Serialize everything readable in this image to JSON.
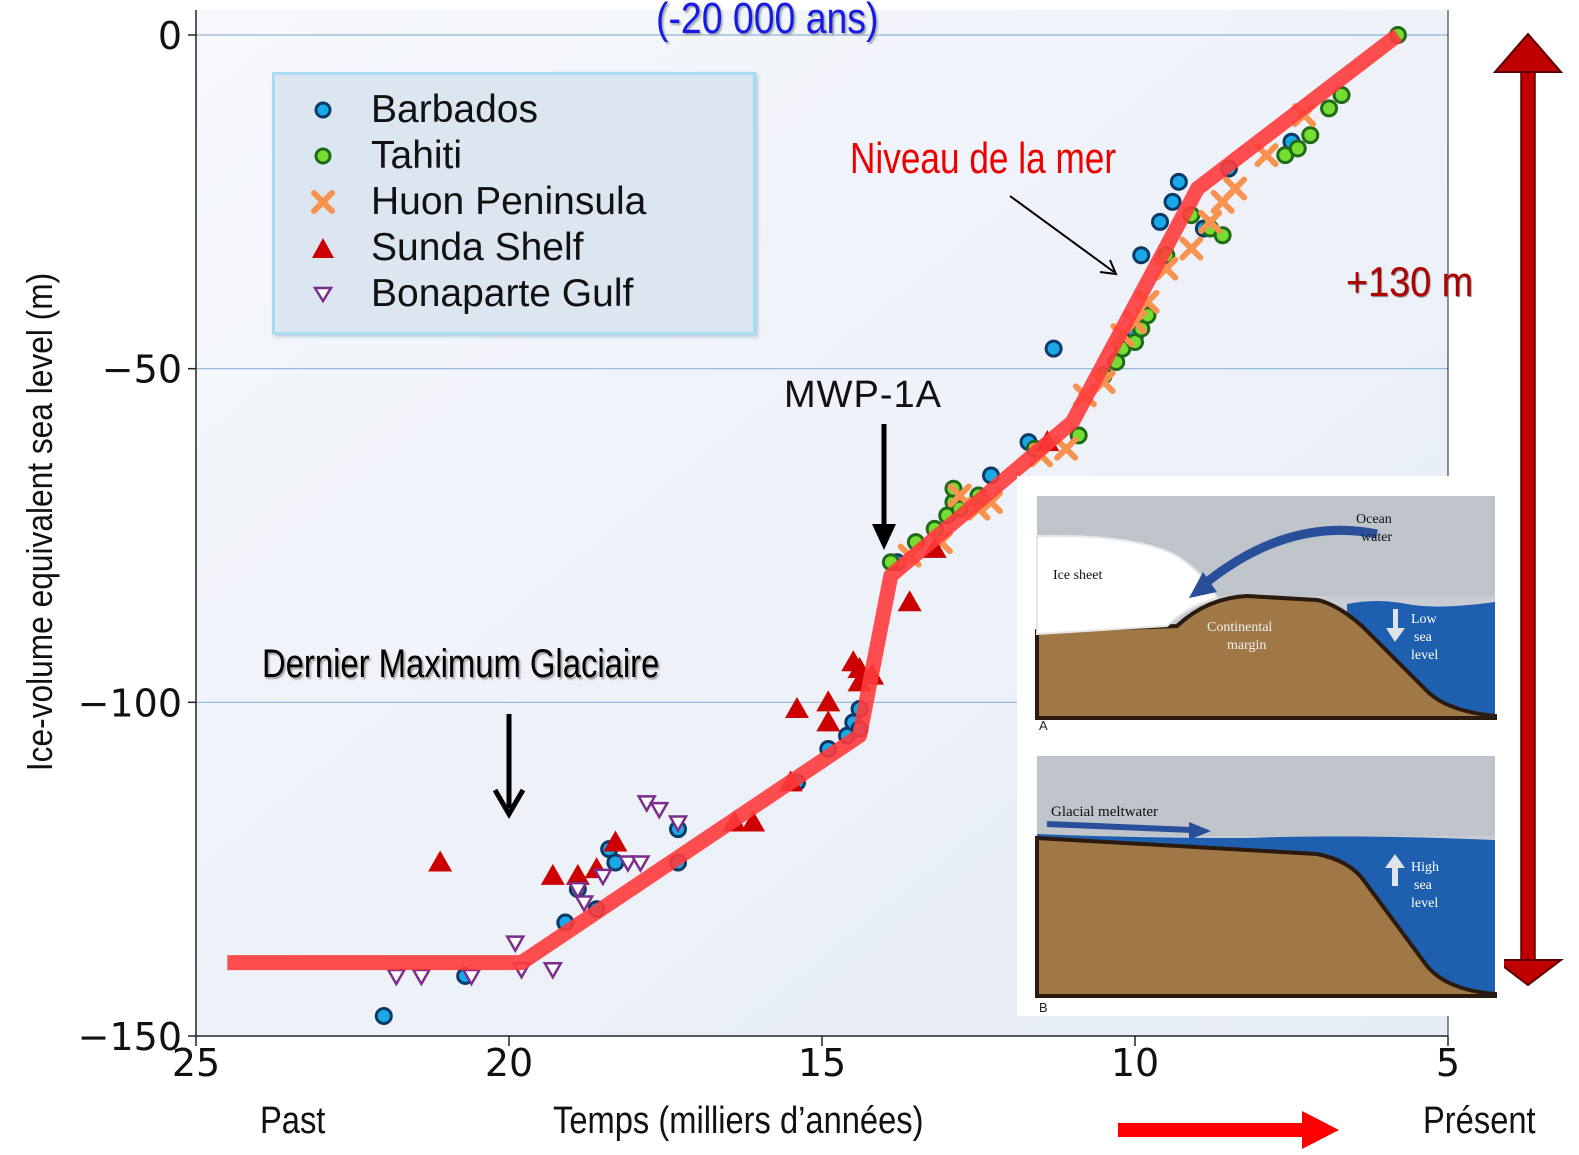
{
  "chart_data": {
    "type": "scatter",
    "title": "(-20 000 ans)",
    "ylabel": "Ice-volume equivalent sea level (m)",
    "xlabel": "Temps (milliers d’années)",
    "xlim": [
      25,
      5
    ],
    "ylim": [
      -150,
      0
    ],
    "x_ticks": [
      "25",
      "20",
      "15",
      "10",
      "5"
    ],
    "y_ticks": [
      "0",
      "−50",
      "−100",
      "−150"
    ],
    "grid": "horizontal",
    "legend_position": "top-left",
    "series": [
      {
        "name": "Barbados",
        "marker": "circle",
        "color": "#19a9e8",
        "x": [
          22.0,
          20.7,
          19.1,
          18.9,
          18.6,
          18.4,
          18.3,
          17.3,
          17.3,
          15.4,
          14.9,
          14.6,
          14.5,
          14.4,
          14.4,
          13.8,
          12.3,
          11.7,
          11.3,
          10.0,
          9.9,
          9.6,
          9.4,
          9.3,
          8.9,
          8.5,
          7.5
        ],
        "y": [
          -147,
          -141,
          -133,
          -128,
          -131,
          -122,
          -124,
          -124,
          -119,
          -112,
          -107,
          -105,
          -103,
          -101,
          -104,
          -79,
          -66,
          -61,
          -47,
          -45,
          -33,
          -28,
          -25,
          -22,
          -29,
          -20,
          -16
        ]
      },
      {
        "name": "Tahiti",
        "marker": "circle",
        "color": "#77dd33",
        "x": [
          13.9,
          13.5,
          13.2,
          13.0,
          12.9,
          12.9,
          12.8,
          12.5,
          11.6,
          10.9,
          10.5,
          10.3,
          10.2,
          10.0,
          9.9,
          9.8,
          9.5,
          9.1,
          8.8,
          8.6,
          7.6,
          7.4,
          7.2,
          6.9,
          6.7,
          5.8
        ],
        "y": [
          -79,
          -76,
          -74,
          -72,
          -70,
          -68,
          -71,
          -69,
          -62,
          -60,
          -51,
          -49,
          -47,
          -46,
          -44,
          -42,
          -33,
          -27,
          -29,
          -30,
          -18,
          -17,
          -15,
          -11,
          -9,
          0
        ]
      },
      {
        "name": "Huon Peninsula",
        "marker": "x",
        "color": "#f7934f",
        "x": [
          13.6,
          13.1,
          12.8,
          12.5,
          12.3,
          11.5,
          11.1,
          10.8,
          10.5,
          10.2,
          10.0,
          9.8,
          9.5,
          9.1,
          8.8,
          8.6,
          8.4,
          7.9,
          7.3
        ],
        "y": [
          -78,
          -76,
          -69,
          -71,
          -70,
          -63,
          -62,
          -54,
          -52,
          -45,
          -43,
          -40,
          -35,
          -32,
          -28,
          -25,
          -23,
          -18,
          -12
        ]
      },
      {
        "name": "Sunda Shelf",
        "marker": "triangle-up",
        "color": "#cc0000",
        "x": [
          21.1,
          19.3,
          18.9,
          18.6,
          18.3,
          16.4,
          16.1,
          15.5,
          15.4,
          14.9,
          14.9,
          14.5,
          14.4,
          14.4,
          14.2,
          13.6,
          13.2,
          11.4
        ],
        "y": [
          -124,
          -126,
          -126,
          -125,
          -121,
          -118,
          -118,
          -112,
          -101,
          -100,
          -103,
          -94,
          -95,
          -97,
          -96,
          -85,
          -77,
          -61
        ]
      },
      {
        "name": "Bonaparte Gulf",
        "marker": "triangle-down",
        "color": "#7a2d8c",
        "x": [
          21.8,
          21.4,
          20.6,
          19.9,
          19.8,
          19.3,
          18.9,
          18.8,
          18.5,
          18.1,
          17.9,
          17.8,
          17.6,
          17.3
        ],
        "y": [
          -141,
          -141,
          -141,
          -136,
          -140,
          -140,
          -128,
          -130,
          -126,
          -124,
          -124,
          -115,
          -116,
          -118
        ]
      }
    ],
    "trend_line": {
      "x": [
        24.5,
        19.8,
        14.4,
        13.9,
        11.0,
        9.0,
        5.8
      ],
      "y": [
        -139,
        -139,
        -105,
        -81,
        -58,
        -23,
        0
      ],
      "color": "#ff3b3b"
    }
  },
  "annotations": {
    "dmg_label": "Dernier Maximum Glaciaire",
    "mwp_label": "MWP-1A",
    "sea_level_label": "Niveau de la mer",
    "range_label": "+130 m",
    "past_label": "Past",
    "present_label": "Présent"
  },
  "inset": {
    "panel_a": {
      "letter": "A",
      "ice_sheet": "Ice sheet",
      "ocean_line1": "Ocean",
      "ocean_line2": "water",
      "margin_line1": "Continental",
      "margin_line2": "margin",
      "sea_line1": "Low",
      "sea_line2": "sea",
      "sea_line3": "level"
    },
    "panel_b": {
      "letter": "B",
      "meltwater": "Glacial meltwater",
      "sea_line1": "High",
      "sea_line2": "sea",
      "sea_line3": "level"
    }
  },
  "colors": {
    "trend": "#ff3b3b",
    "range_arrow": "#c00000",
    "title": "#1a1ae6",
    "annotation_red": "#ee0000"
  }
}
